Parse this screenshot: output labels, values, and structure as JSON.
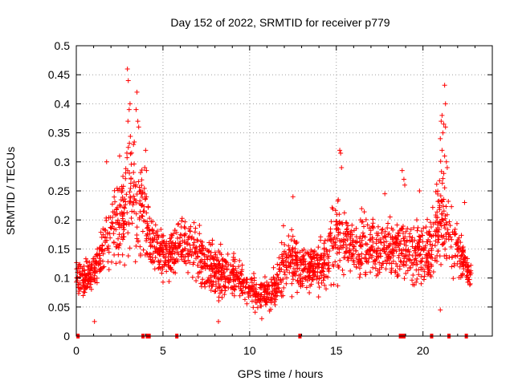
{
  "chart_data": {
    "type": "scatter",
    "title": "Day 152 of 2022, SRMTID for receiver p779",
    "xlabel": "GPS time / hours",
    "ylabel": "SRMTID / TECUs",
    "xlim": [
      0,
      24
    ],
    "ylim": [
      0,
      0.5
    ],
    "x_ticks": [
      0,
      5,
      10,
      15,
      20
    ],
    "x_tick_labels": [
      "0",
      "5",
      "10",
      "15",
      "20"
    ],
    "y_ticks": [
      0,
      0.05,
      0.1,
      0.15,
      0.2,
      0.25,
      0.3,
      0.35,
      0.4,
      0.45,
      0.5
    ],
    "y_tick_labels": [
      "0",
      "0.05",
      "0.1",
      "0.15",
      "0.2",
      "0.25",
      "0.3",
      "0.35",
      "0.4",
      "0.45",
      "0.5"
    ],
    "grid": true,
    "marker": "+",
    "color": "#ff0000",
    "envelope": {
      "note": "approximate band of the dense point cloud (lower/upper bounds vs hour)",
      "x": [
        0.0,
        0.5,
        1.0,
        1.5,
        2.0,
        2.5,
        3.0,
        3.5,
        4.0,
        4.5,
        5.0,
        5.5,
        6.0,
        6.5,
        7.0,
        7.5,
        8.0,
        8.5,
        9.0,
        9.5,
        10.0,
        10.5,
        11.0,
        11.5,
        12.0,
        12.5,
        13.0,
        13.5,
        14.0,
        14.5,
        15.0,
        15.5,
        16.0,
        16.5,
        17.0,
        17.5,
        18.0,
        18.5,
        19.0,
        19.5,
        20.0,
        20.5,
        21.0,
        21.5,
        22.0,
        22.5,
        22.8
      ],
      "lower": [
        0.06,
        0.05,
        0.06,
        0.08,
        0.1,
        0.1,
        0.09,
        0.09,
        0.09,
        0.09,
        0.08,
        0.08,
        0.09,
        0.09,
        0.07,
        0.06,
        0.05,
        0.05,
        0.05,
        0.05,
        0.04,
        0.03,
        0.03,
        0.03,
        0.05,
        0.06,
        0.06,
        0.06,
        0.06,
        0.06,
        0.07,
        0.08,
        0.08,
        0.08,
        0.08,
        0.08,
        0.08,
        0.08,
        0.08,
        0.08,
        0.07,
        0.07,
        0.07,
        0.08,
        0.09,
        0.08,
        0.07
      ],
      "upper": [
        0.15,
        0.14,
        0.16,
        0.21,
        0.25,
        0.3,
        0.42,
        0.36,
        0.28,
        0.22,
        0.2,
        0.21,
        0.22,
        0.22,
        0.22,
        0.18,
        0.17,
        0.17,
        0.16,
        0.14,
        0.12,
        0.11,
        0.11,
        0.13,
        0.2,
        0.2,
        0.18,
        0.17,
        0.18,
        0.2,
        0.29,
        0.25,
        0.22,
        0.23,
        0.23,
        0.22,
        0.24,
        0.23,
        0.22,
        0.21,
        0.22,
        0.22,
        0.35,
        0.28,
        0.2,
        0.16,
        0.13
      ]
    },
    "spikes": [
      {
        "x": 2.95,
        "y": 0.46
      },
      {
        "x": 3.0,
        "y": 0.44
      },
      {
        "x": 3.1,
        "y": 0.4
      },
      {
        "x": 3.05,
        "y": 0.39
      },
      {
        "x": 2.98,
        "y": 0.37
      },
      {
        "x": 3.5,
        "y": 0.42
      },
      {
        "x": 3.45,
        "y": 0.39
      },
      {
        "x": 3.55,
        "y": 0.37
      },
      {
        "x": 3.6,
        "y": 0.36
      },
      {
        "x": 3.3,
        "y": 0.33
      },
      {
        "x": 3.0,
        "y": 0.325
      },
      {
        "x": 2.5,
        "y": 0.31
      },
      {
        "x": 1.75,
        "y": 0.3
      },
      {
        "x": 4.0,
        "y": 0.32
      },
      {
        "x": 3.95,
        "y": 0.29
      },
      {
        "x": 4.05,
        "y": 0.285
      },
      {
        "x": 15.2,
        "y": 0.32
      },
      {
        "x": 15.25,
        "y": 0.315
      },
      {
        "x": 15.3,
        "y": 0.29
      },
      {
        "x": 17.8,
        "y": 0.245
      },
      {
        "x": 18.8,
        "y": 0.285
      },
      {
        "x": 18.9,
        "y": 0.27
      },
      {
        "x": 18.95,
        "y": 0.26
      },
      {
        "x": 19.8,
        "y": 0.25
      },
      {
        "x": 21.25,
        "y": 0.432
      },
      {
        "x": 21.3,
        "y": 0.4
      },
      {
        "x": 21.1,
        "y": 0.38
      },
      {
        "x": 21.05,
        "y": 0.37
      },
      {
        "x": 21.2,
        "y": 0.365
      },
      {
        "x": 21.3,
        "y": 0.36
      },
      {
        "x": 21.15,
        "y": 0.35
      },
      {
        "x": 21.0,
        "y": 0.34
      },
      {
        "x": 21.1,
        "y": 0.32
      },
      {
        "x": 21.25,
        "y": 0.31
      },
      {
        "x": 21.35,
        "y": 0.3
      },
      {
        "x": 21.4,
        "y": 0.29
      },
      {
        "x": 21.2,
        "y": 0.28
      },
      {
        "x": 12.5,
        "y": 0.24
      },
      {
        "x": 11.95,
        "y": 0.19
      },
      {
        "x": 1.05,
        "y": 0.025
      },
      {
        "x": 8.2,
        "y": 0.025
      },
      {
        "x": 10.7,
        "y": 0.03
      },
      {
        "x": 21.0,
        "y": 0.045
      },
      {
        "x": 22.4,
        "y": 0.23
      }
    ],
    "zero_markers": [
      0.1,
      3.85,
      4.1,
      4.2,
      5.8,
      12.9,
      18.7,
      18.8,
      18.9,
      20.5,
      21.5,
      22.5
    ],
    "x_extent_hours": [
      0,
      22.8
    ]
  }
}
